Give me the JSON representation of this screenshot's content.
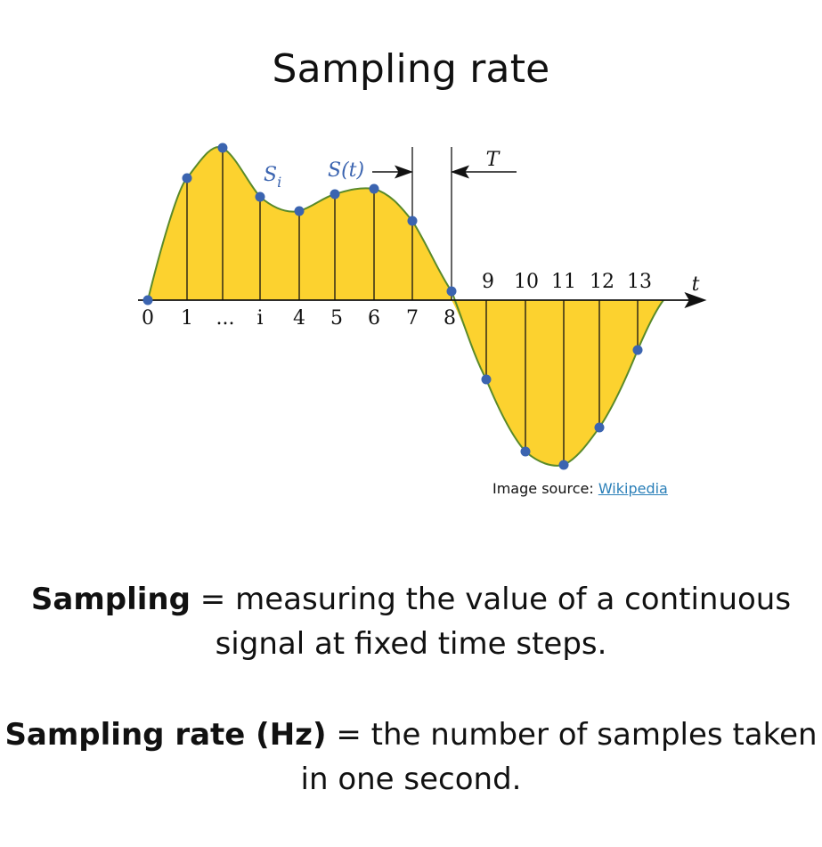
{
  "title": "Sampling rate",
  "diagram": {
    "sample_labels_below": [
      "0",
      "1",
      "...",
      "i",
      "4",
      "5",
      "6",
      "7",
      "8"
    ],
    "sample_labels_above": [
      "9",
      "10",
      "11",
      "12",
      "13"
    ],
    "axis_label": "t",
    "signal_label": "S(t)",
    "sample_label_base": "S",
    "sample_label_sub": "i",
    "period_label": "T",
    "fill_color": "#FCD22F",
    "curve_color": "#5a8a2a",
    "point_color": "#3b64b0"
  },
  "source": {
    "prefix": "Image source:",
    "link_text": "Wikipedia"
  },
  "para1": {
    "bold": "Sampling",
    "text": " =  measuring the value of a continuous signal at fixed time steps."
  },
  "para2": {
    "bold": "Sampling rate (Hz)",
    "text": " = the number of samples taken in one second."
  }
}
